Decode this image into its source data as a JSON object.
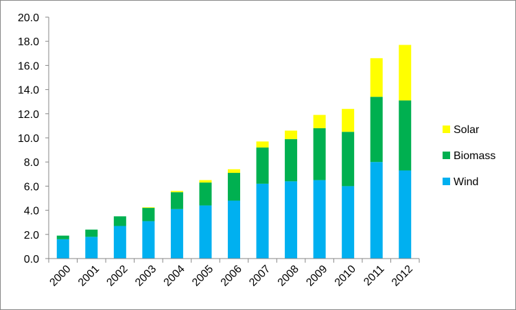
{
  "chart_data": {
    "type": "bar",
    "stacked": true,
    "title": "",
    "xlabel": "",
    "ylabel": "",
    "categories": [
      "2000",
      "2001",
      "2002",
      "2003",
      "2004",
      "2005",
      "2006",
      "2007",
      "2008",
      "2009",
      "2010",
      "2011",
      "2012"
    ],
    "series": [
      {
        "name": "Wind",
        "color": "#00B0F0",
        "values": [
          1.6,
          1.8,
          2.7,
          3.1,
          4.1,
          4.4,
          4.8,
          6.2,
          6.4,
          6.5,
          6.0,
          8.0,
          7.3
        ]
      },
      {
        "name": "Biomass",
        "color": "#00B050",
        "values": [
          0.3,
          0.6,
          0.8,
          1.1,
          1.4,
          1.9,
          2.3,
          3.0,
          3.5,
          4.3,
          4.5,
          5.4,
          5.8
        ]
      },
      {
        "name": "Solar",
        "color": "#FFFF00",
        "values": [
          0.0,
          0.0,
          0.0,
          0.05,
          0.1,
          0.2,
          0.3,
          0.5,
          0.7,
          1.1,
          1.9,
          3.2,
          4.6
        ]
      }
    ],
    "ylim": [
      0,
      20
    ],
    "y_ticks": [
      "0.0",
      "2.0",
      "4.0",
      "6.0",
      "8.0",
      "10.0",
      "12.0",
      "14.0",
      "16.0",
      "18.0",
      "20.0"
    ],
    "grid": false,
    "legend": {
      "position": "right",
      "order": [
        "Solar",
        "Biomass",
        "Wind"
      ]
    }
  }
}
